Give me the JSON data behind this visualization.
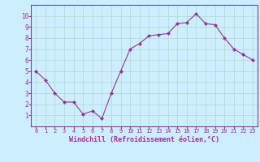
{
  "x": [
    0,
    1,
    2,
    3,
    4,
    5,
    6,
    7,
    8,
    9,
    10,
    11,
    12,
    13,
    14,
    15,
    16,
    17,
    18,
    19,
    20,
    21,
    22,
    23
  ],
  "y": [
    5.0,
    4.2,
    3.0,
    2.2,
    2.2,
    1.1,
    1.4,
    0.7,
    3.0,
    5.0,
    7.0,
    7.5,
    8.2,
    8.3,
    8.4,
    9.3,
    9.4,
    10.2,
    9.3,
    9.2,
    8.0,
    7.0,
    6.5,
    6.0
  ],
  "xlabel": "Windchill (Refroidissement éolien,°C)",
  "xlim": [
    -0.5,
    23.5
  ],
  "ylim": [
    0,
    11
  ],
  "yticks": [
    1,
    2,
    3,
    4,
    5,
    6,
    7,
    8,
    9,
    10
  ],
  "xticks": [
    0,
    1,
    2,
    3,
    4,
    5,
    6,
    7,
    8,
    9,
    10,
    11,
    12,
    13,
    14,
    15,
    16,
    17,
    18,
    19,
    20,
    21,
    22,
    23
  ],
  "line_color": "#993399",
  "marker_color": "#993399",
  "bg_color": "#cceeff",
  "grid_color": "#b0d8cc",
  "axis_color": "#993399",
  "tick_color": "#993399",
  "label_color": "#993399",
  "fig_bg": "#cceeff"
}
